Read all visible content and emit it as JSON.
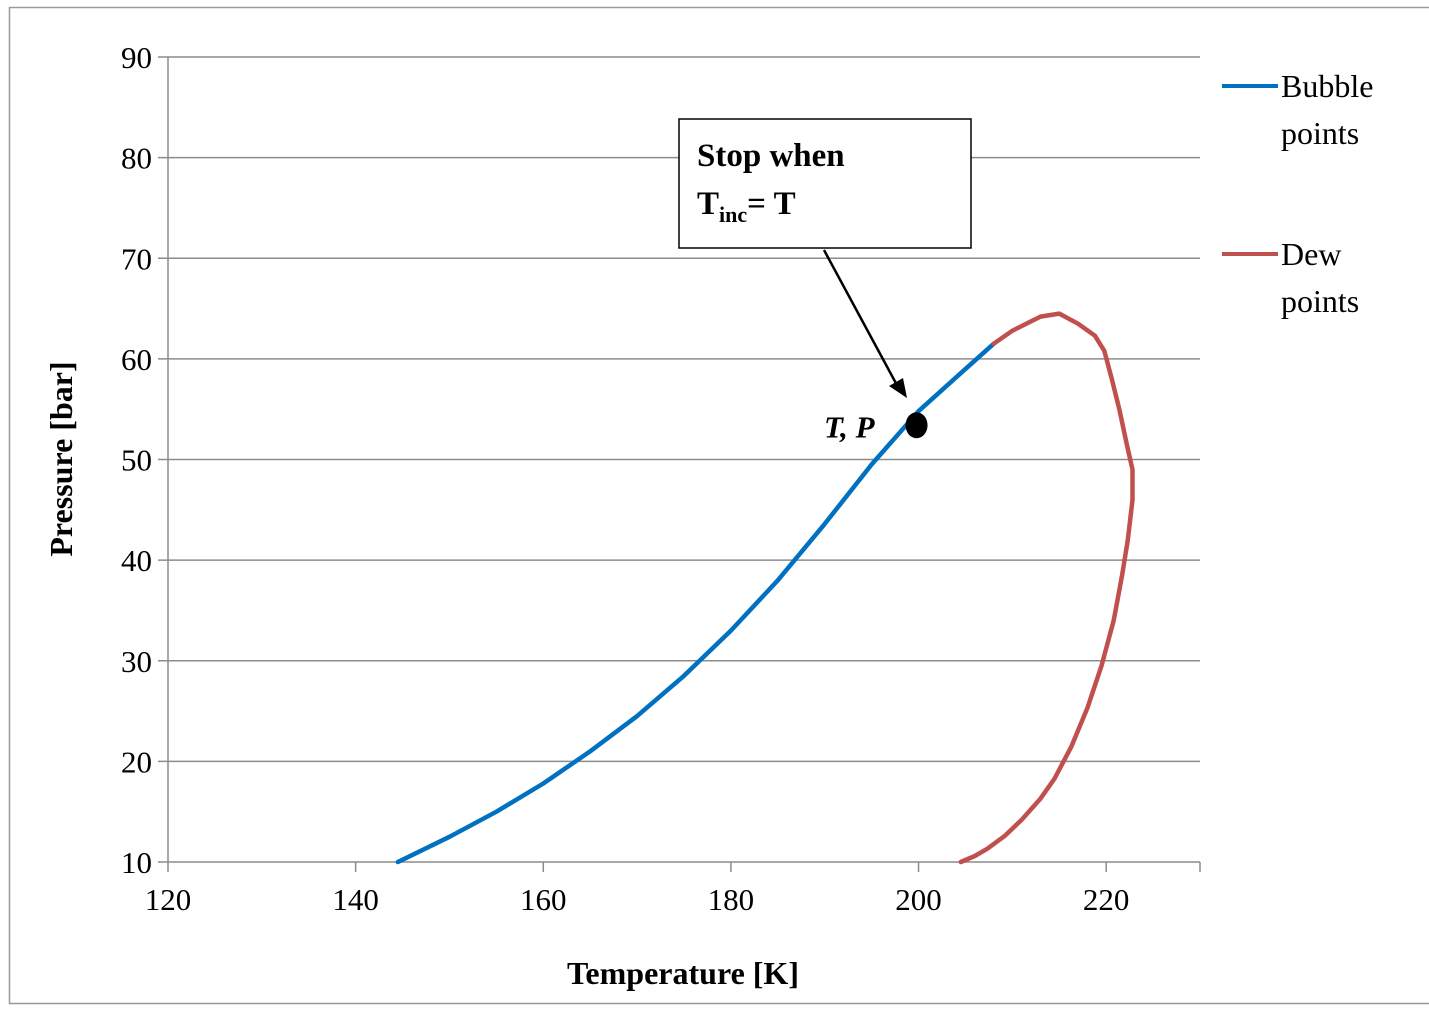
{
  "chart_data": {
    "type": "line",
    "xlabel": "Temperature [K]",
    "ylabel": "Pressure [bar]",
    "xlim": [
      120,
      230
    ],
    "ylim": [
      10,
      90
    ],
    "x_ticks": [
      120,
      140,
      160,
      180,
      200,
      220
    ],
    "y_ticks": [
      10,
      20,
      30,
      40,
      50,
      60,
      70,
      80,
      90
    ],
    "grid": "horizontal major",
    "legend_position": "right",
    "series": [
      {
        "name": "Bubble points",
        "color": "#0070C0",
        "x": [
          144.5,
          150,
          155,
          160,
          165,
          170,
          175,
          180,
          185,
          190,
          195,
          200,
          205,
          208
        ],
        "y": [
          10.0,
          12.5,
          15.0,
          17.8,
          21.0,
          24.5,
          28.5,
          33.0,
          38.0,
          43.6,
          49.5,
          54.8,
          59.0,
          61.5
        ]
      },
      {
        "name": "Dew points",
        "color": "#C0504D",
        "x": [
          208,
          210,
          213,
          215,
          217,
          218.8,
          219.8,
          220.6,
          221.4,
          222.2,
          222.8,
          222.8,
          222.3,
          221.7,
          220.8,
          219.5,
          218.0,
          216.3,
          214.5,
          213.0,
          211.0,
          209.2,
          207.3,
          206.0,
          204.5
        ],
        "y": [
          61.5,
          62.8,
          64.2,
          64.5,
          63.5,
          62.3,
          60.8,
          58.0,
          55.0,
          51.5,
          49.0,
          46.0,
          42.0,
          38.5,
          34.0,
          29.5,
          25.3,
          21.5,
          18.3,
          16.3,
          14.2,
          12.6,
          11.3,
          10.6,
          10.0
        ]
      }
    ],
    "highlight_point": {
      "x": 200,
      "y": 54,
      "label": "T, P"
    },
    "annotation": {
      "line1": "Stop when",
      "t_main": "T",
      "t_sub": "inc",
      "t_rest": "= T"
    }
  }
}
